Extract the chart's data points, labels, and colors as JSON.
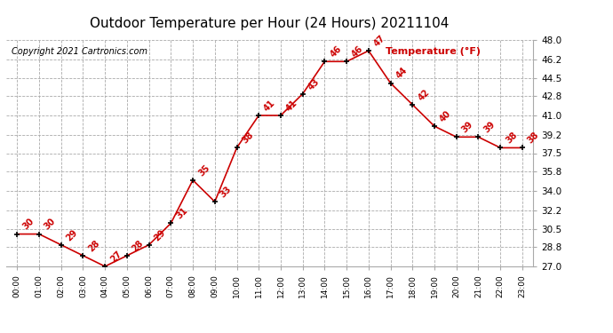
{
  "title": "Outdoor Temperature per Hour (24 Hours) 20211104",
  "copyright": "Copyright 2021 Cartronics.com",
  "legend_label": "Temperature (°F)",
  "hours": [
    "00:00",
    "01:00",
    "02:00",
    "03:00",
    "04:00",
    "05:00",
    "06:00",
    "07:00",
    "08:00",
    "09:00",
    "10:00",
    "11:00",
    "12:00",
    "13:00",
    "14:00",
    "15:00",
    "16:00",
    "17:00",
    "18:00",
    "19:00",
    "20:00",
    "21:00",
    "22:00",
    "23:00"
  ],
  "temperatures": [
    30,
    30,
    29,
    28,
    27,
    28,
    29,
    31,
    35,
    33,
    38,
    41,
    41,
    43,
    46,
    46,
    47,
    44,
    42,
    40,
    39,
    39,
    38,
    38
  ],
  "ylim": [
    27.0,
    48.0
  ],
  "yticks": [
    27.0,
    28.8,
    30.5,
    32.2,
    34.0,
    35.8,
    37.5,
    39.2,
    41.0,
    42.8,
    44.5,
    46.2,
    48.0
  ],
  "line_color": "#cc0000",
  "marker_color": "black",
  "label_color": "#cc0000",
  "background_color": "#ffffff",
  "grid_color": "#aaaaaa",
  "title_color": "black",
  "copyright_color": "black",
  "legend_color": "#cc0000",
  "title_fontsize": 11,
  "copyright_fontsize": 7,
  "label_fontsize": 7,
  "legend_fontsize": 8,
  "tick_fontsize": 7.5,
  "xtick_fontsize": 6.5
}
